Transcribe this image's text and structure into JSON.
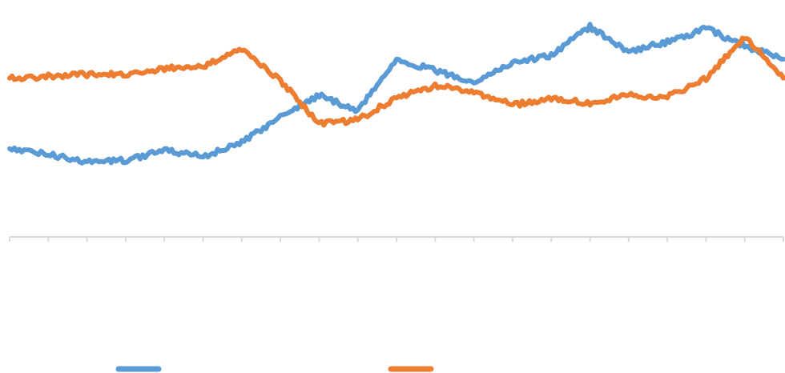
{
  "chart_data": {
    "type": "line",
    "title": "",
    "xlabel": "",
    "ylabel": "",
    "grid": false,
    "legend_position": "bottom",
    "x": [
      0,
      10,
      20,
      30,
      40,
      50,
      60,
      70,
      80,
      90,
      100,
      110,
      120,
      130,
      140,
      150,
      160,
      170,
      180,
      190,
      200
    ],
    "xlim": [
      0,
      200
    ],
    "ylim": [
      0,
      100
    ],
    "series": [
      {
        "color": "#5b9bd5",
        "values": [
          27,
          24,
          20,
          21,
          26,
          23,
          30,
          44,
          55,
          47,
          74,
          68,
          62,
          72,
          76,
          91,
          78,
          83,
          90,
          81,
          74
        ]
      },
      {
        "color": "#ed7d31",
        "values": [
          64,
          65,
          66,
          66,
          69,
          70,
          79,
          63,
          40,
          42,
          54,
          60,
          57,
          50,
          53,
          51,
          55,
          54,
          64,
          86,
          64
        ]
      }
    ],
    "legend": [
      {
        "color": "#5b9bd5",
        "label": ""
      },
      {
        "color": "#ed7d31",
        "label": ""
      }
    ]
  }
}
